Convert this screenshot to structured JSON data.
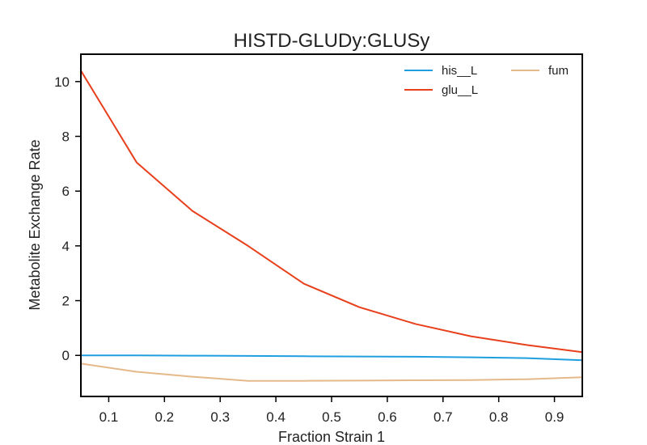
{
  "chart_data": {
    "type": "line",
    "title": "HISTD-GLUDy:GLUSy",
    "xlabel": "Fraction Strain 1",
    "ylabel": "Metabolite Exchange Rate",
    "xlim": [
      0.05,
      0.95
    ],
    "ylim": [
      -1.5,
      11
    ],
    "xticks": [
      0.1,
      0.2,
      0.3,
      0.4,
      0.5,
      0.6,
      0.7,
      0.8,
      0.9
    ],
    "xtick_labels": [
      "0.1",
      "0.2",
      "0.3",
      "0.4",
      "0.5",
      "0.6",
      "0.7",
      "0.8",
      "0.9"
    ],
    "yticks": [
      0,
      2,
      4,
      6,
      8,
      10
    ],
    "ytick_labels": [
      "0",
      "2",
      "4",
      "6",
      "8",
      "10"
    ],
    "grid": false,
    "legend_position": "top-right",
    "x": [
      0.05,
      0.15,
      0.25,
      0.35,
      0.45,
      0.55,
      0.65,
      0.75,
      0.85,
      0.95
    ],
    "series": [
      {
        "name": "his__L",
        "color": "#1f9fe0",
        "values": [
          0.0,
          0.0,
          -0.01,
          -0.02,
          -0.03,
          -0.04,
          -0.05,
          -0.07,
          -0.1,
          -0.18
        ]
      },
      {
        "name": "glu__L",
        "color": "#e8401c",
        "values": [
          10.4,
          7.05,
          5.28,
          4.0,
          2.62,
          1.76,
          1.15,
          0.7,
          0.38,
          0.12
        ]
      },
      {
        "name": "fum",
        "color": "#e5b98a",
        "values": [
          -0.3,
          -0.6,
          -0.78,
          -0.93,
          -0.93,
          -0.92,
          -0.91,
          -0.9,
          -0.87,
          -0.8
        ]
      }
    ]
  }
}
